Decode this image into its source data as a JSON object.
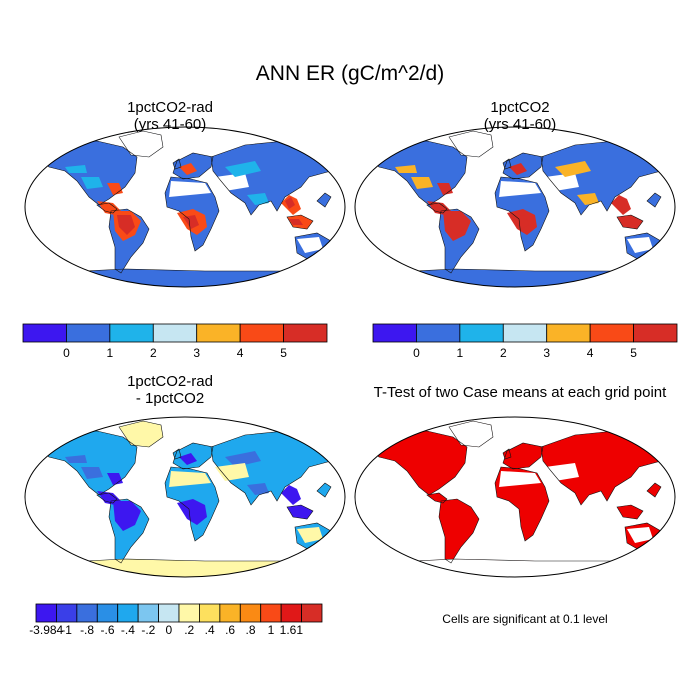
{
  "figure": {
    "title": "ANN ER (gC/m^2/d)"
  },
  "panels": [
    {
      "id": "p1",
      "title_line1": "1pctCO2-rad",
      "title_line2": "(yrs 41-60)",
      "colorbar": {
        "colors": [
          "#3d17f0",
          "#3a6fde",
          "#1fb3ea",
          "#c6e6f2",
          "#fab327",
          "#f94a17",
          "#d72d26"
        ],
        "labels": [
          "0",
          "1",
          "2",
          "3",
          "4",
          "5"
        ]
      }
    },
    {
      "id": "p2",
      "title_line1": "1pctCO2",
      "title_line2": "(yrs 41-60)",
      "colorbar": {
        "colors": [
          "#3d17f0",
          "#3a6fde",
          "#1fb3ea",
          "#c6e6f2",
          "#fab327",
          "#f94a17",
          "#d72d26"
        ],
        "labels": [
          "0",
          "1",
          "2",
          "3",
          "4",
          "5"
        ]
      }
    },
    {
      "id": "p3",
      "title_line1": "1pctCO2-rad",
      "title_line2": "- 1pctCO2",
      "colorbar": {
        "colors": [
          "#3d17f0",
          "#3a3fe8",
          "#3a6fde",
          "#2a8fe6",
          "#1fa8ee",
          "#7cc6f0",
          "#c6e6f2",
          "#fff8a8",
          "#fde05e",
          "#fab327",
          "#fa8a14",
          "#f94a17",
          "#e01818",
          "#d72d26"
        ],
        "labels": [
          "-3.984",
          "-1",
          "-.8",
          "-.6",
          "-.4",
          "-.2",
          "0",
          ".2",
          ".4",
          ".6",
          ".8",
          "1",
          "1.61"
        ]
      }
    },
    {
      "id": "p4",
      "title": "T-Test of two Case means at each grid point",
      "note": "Cells are significant at 0.1 level",
      "significant_color": "#ee0000"
    }
  ]
}
